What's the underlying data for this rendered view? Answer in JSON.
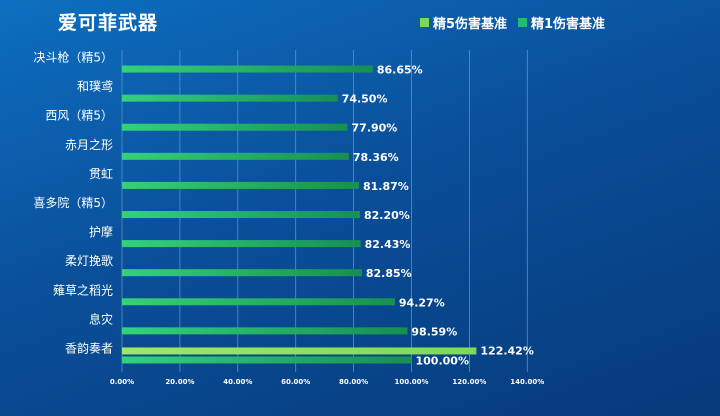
{
  "chart_data": {
    "type": "bar",
    "orientation": "horizontal",
    "title": "爱可菲武器",
    "categories": [
      "决斗枪（精5）",
      "和璞鸢",
      "西风（精5）",
      "赤月之形",
      "贯虹",
      "喜多院（精5）",
      "护摩",
      "柔灯挽歌",
      "薙草之稻光",
      "息灾",
      "香韵奏者"
    ],
    "series": [
      {
        "name": "精5伤害基准",
        "color": "#7ed957",
        "values": [
          null,
          null,
          null,
          null,
          null,
          null,
          null,
          null,
          null,
          null,
          122.42
        ],
        "labels": [
          "",
          "",
          "",
          "",
          "",
          "",
          "",
          "",
          "",
          "",
          "122.42%"
        ]
      },
      {
        "name": "精1伤害基准",
        "color": "#1fbf6a",
        "values": [
          86.65,
          74.5,
          77.9,
          78.36,
          81.87,
          82.2,
          82.43,
          82.85,
          94.27,
          98.59,
          100.0
        ],
        "labels": [
          "86.65%",
          "74.50%",
          "77.90%",
          "78.36%",
          "81.87%",
          "82.20%",
          "82.43%",
          "82.85%",
          "94.27%",
          "98.59%",
          "100.00%"
        ]
      }
    ],
    "xlim": [
      0,
      140
    ],
    "ticks": [
      "0.00%",
      "20.00%",
      "40.00%",
      "60.00%",
      "80.00%",
      "100.00%",
      "120.00%",
      "140.00%"
    ],
    "grid": true,
    "legend_position": "top-right"
  },
  "colors": {
    "background": "#0a4f9a",
    "series1": "#7ed957",
    "series2": "#1fbf6a",
    "gridline": "#5f8fc6"
  }
}
